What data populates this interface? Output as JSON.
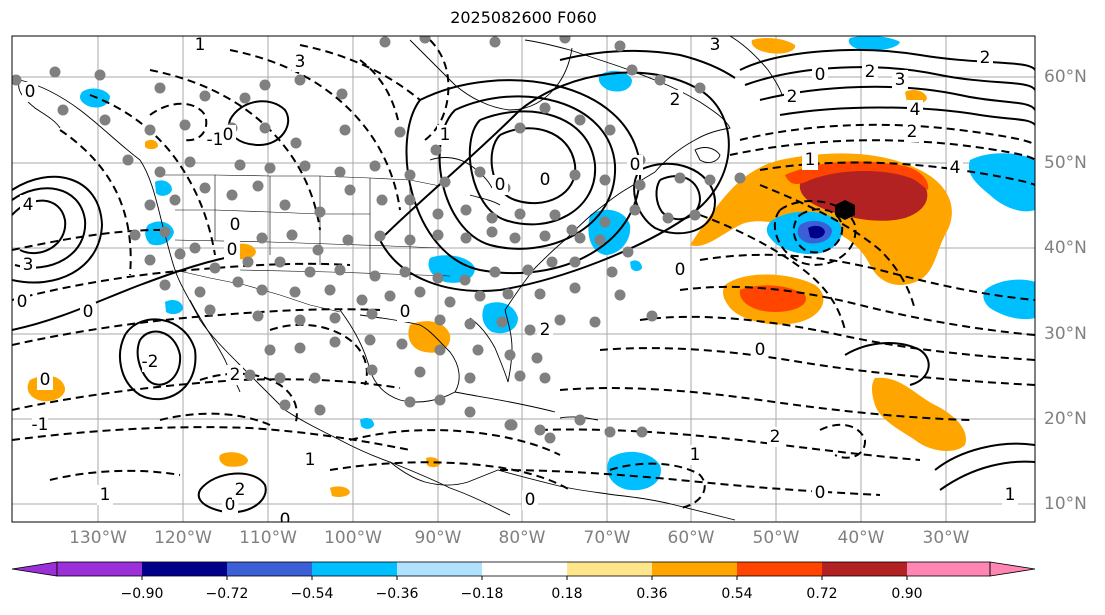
{
  "title": "2025082600 F060",
  "lon_labels": [
    "130°W",
    "120°W",
    "110°W",
    "100°W",
    "90°W",
    "80°W",
    "70°W",
    "60°W",
    "50°W",
    "40°W",
    "30°W"
  ],
  "lat_labels": [
    "60°N",
    "50°N",
    "40°N",
    "30°N",
    "20°N",
    "10°N"
  ],
  "contour_labels": [
    "0",
    "1",
    "2",
    "3",
    "4",
    "-1",
    "-2"
  ],
  "colorbar": {
    "ticks": [
      "−0.90",
      "−0.72",
      "−0.54",
      "−0.36",
      "−0.18",
      "0.18",
      "0.36",
      "0.54",
      "0.72",
      "0.90"
    ],
    "colors": [
      "#9b30d9",
      "#00008b",
      "#3b5fd6",
      "#00bfff",
      "#b0e2ff",
      "#ffffff",
      "#ffe68a",
      "#ffa500",
      "#ff4500",
      "#b22222",
      "#ff85b2"
    ]
  },
  "palette": {
    "land": "#000000",
    "grid": "#aaaaaa",
    "axis_text": "#808080",
    "station": "#808080"
  }
}
